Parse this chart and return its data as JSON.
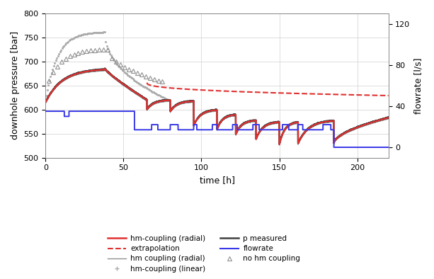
{
  "title": "",
  "xlabel": "time [h]",
  "ylabel_left": "downhole pressure [bar]",
  "ylabel_right": "flowrate [l/s]",
  "xlim": [
    0,
    220
  ],
  "ylim_left": [
    500,
    800
  ],
  "ylim_right": [
    -10,
    130
  ],
  "yticks_left": [
    500,
    550,
    600,
    650,
    700,
    750,
    800
  ],
  "yticks_right": [
    0,
    40,
    80,
    120
  ],
  "xticks": [
    0,
    50,
    100,
    150,
    200
  ],
  "hm_radial_color": "#e03030",
  "extrap_color": "#e03030",
  "hm_radial_gray_color": "#909090",
  "hm_linear_color": "#aaaaaa",
  "p_meas_color": "#404040",
  "flowrate_color": "#3838e8",
  "no_hm_color": "#909090",
  "legend_items_col1": [
    {
      "label": "hm-coupling (radial)",
      "color": "#e03030",
      "lw": 1.8,
      "ls": "-",
      "marker": "None"
    },
    {
      "label": "extrapolation",
      "color": "#e03030",
      "lw": 1.5,
      "ls": "--",
      "marker": "None"
    },
    {
      "label": "hm coupling (radial)",
      "color": "#909090",
      "lw": 1.0,
      "ls": "-",
      "marker": "None"
    },
    {
      "label": "hm-coupling (linear)",
      "color": "#aaaaaa",
      "lw": 0,
      "ls": "None",
      "marker": "+"
    }
  ],
  "legend_items_col2": [
    {
      "label": "p measured",
      "color": "#404040",
      "lw": 1.8,
      "ls": "-",
      "marker": "None"
    },
    {
      "label": "flowrate",
      "color": "#3838e8",
      "lw": 1.5,
      "ls": "-",
      "marker": "None"
    },
    {
      "label": "no hm coupling",
      "color": "#909090",
      "lw": 0,
      "ls": "None",
      "marker": "^"
    }
  ]
}
